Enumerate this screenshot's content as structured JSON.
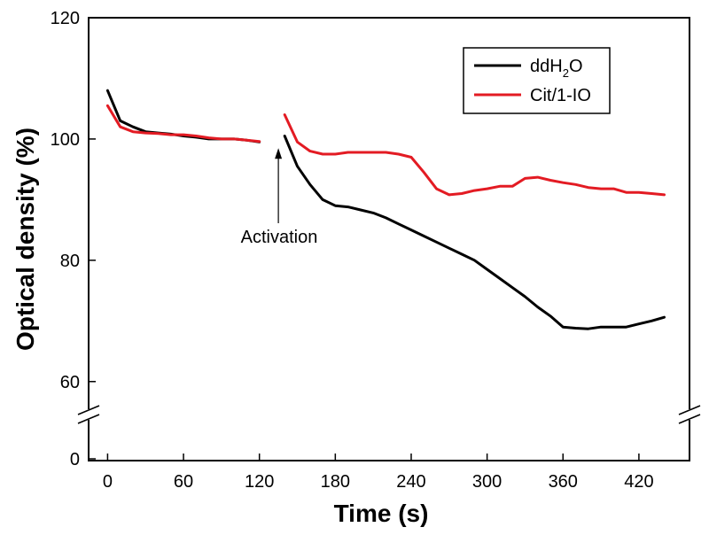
{
  "chart_data": {
    "type": "line",
    "title": "",
    "xlabel": "Time (s)",
    "ylabel": "Optical density (%)",
    "xlim": [
      -15,
      460
    ],
    "xticks": [
      0,
      60,
      120,
      180,
      240,
      300,
      360,
      420
    ],
    "yticks_upper": [
      60,
      80,
      100,
      120
    ],
    "ytick_lower": 0,
    "ylim_upper": [
      55,
      120
    ],
    "axis_break": true,
    "legend_position": "top-right",
    "legend": [
      {
        "name": "ddH2O",
        "base": "ddH",
        "sub": "2",
        "tail": "O",
        "color": "#000000"
      },
      {
        "name": "Cit/1-IO",
        "base": "Cit/1-IO",
        "sub": "",
        "tail": "",
        "color": "#e31b23"
      }
    ],
    "annotation": {
      "text": "Activation",
      "arrow_target_x": 135,
      "arrow_target_y": 98.5
    },
    "series": [
      {
        "name": "ddH2O",
        "color": "#000000",
        "segments": [
          {
            "x": [
              0,
              10,
              20,
              30,
              40,
              50,
              60,
              70,
              80,
              90,
              100,
              110,
              120
            ],
            "y": [
              108,
              103,
              102,
              101.2,
              101,
              100.8,
              100.5,
              100.3,
              100,
              100,
              100,
              99.8,
              99.5
            ]
          },
          {
            "x": [
              140,
              150,
              160,
              170,
              180,
              190,
              200,
              210,
              220,
              230,
              240,
              250,
              260,
              270,
              280,
              290,
              300,
              310,
              320,
              330,
              340,
              350,
              360,
              370,
              380,
              390,
              400,
              410,
              420,
              430,
              440
            ],
            "y": [
              100.5,
              95.5,
              92.5,
              90,
              89,
              88.8,
              88.3,
              87.8,
              87,
              86,
              85,
              84,
              83,
              82,
              81,
              80,
              78.5,
              77,
              75.5,
              74,
              72.3,
              70.8,
              69,
              68.8,
              68.7,
              69,
              69,
              69,
              69.5,
              70,
              70.6
            ]
          }
        ]
      },
      {
        "name": "Cit/1-IO",
        "color": "#e31b23",
        "segments": [
          {
            "x": [
              0,
              10,
              20,
              30,
              40,
              50,
              60,
              70,
              80,
              90,
              100,
              110,
              120
            ],
            "y": [
              105.5,
              102,
              101.2,
              101,
              100.9,
              100.7,
              100.7,
              100.5,
              100.2,
              100,
              100,
              99.8,
              99.6
            ]
          },
          {
            "x": [
              140,
              150,
              160,
              170,
              180,
              190,
              200,
              210,
              220,
              230,
              240,
              250,
              260,
              270,
              280,
              290,
              300,
              310,
              320,
              330,
              340,
              350,
              360,
              370,
              380,
              390,
              400,
              410,
              420,
              430,
              440
            ],
            "y": [
              104,
              99.5,
              98,
              97.5,
              97.5,
              97.8,
              97.8,
              97.8,
              97.8,
              97.5,
              97,
              94.5,
              91.8,
              90.8,
              91,
              91.5,
              91.8,
              92.2,
              92.2,
              93.5,
              93.7,
              93.2,
              92.8,
              92.5,
              92,
              91.8,
              91.8,
              91.2,
              91.2,
              91,
              90.8
            ]
          }
        ]
      }
    ]
  }
}
